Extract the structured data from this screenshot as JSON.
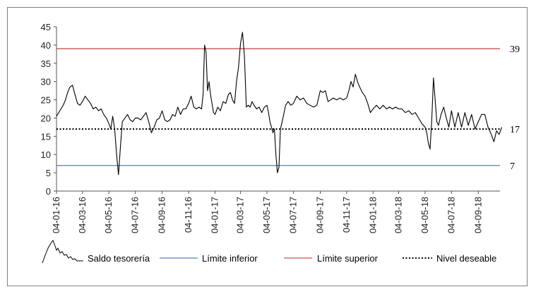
{
  "chart_data": {
    "type": "line",
    "title": "",
    "xlabel": "",
    "ylabel": "",
    "ylim": [
      0,
      45
    ],
    "yticks": [
      0,
      5,
      10,
      15,
      20,
      25,
      30,
      35,
      40,
      45
    ],
    "x_ticks": [
      "04-01-16",
      "04-03-16",
      "04-05-16",
      "04-07-16",
      "04-09-16",
      "04-11-16",
      "04-01-17",
      "04-03-17",
      "04-05-17",
      "04-07-17",
      "04-09-17",
      "04-11-17",
      "04-01-18",
      "04-03-18",
      "04-05-18",
      "04-07-18",
      "04-09-18"
    ],
    "series": [
      {
        "name": "Saldo tesorería",
        "color": "#000000",
        "style": "solid",
        "points": [
          [
            "04-01-16",
            20.5
          ],
          [
            "04-01-16",
            21.5
          ],
          [
            "04-01-16",
            22.5
          ],
          [
            "04-01-16",
            23.5
          ],
          [
            "04-01-16",
            25.0
          ],
          [
            "04-01-16",
            27.0
          ],
          [
            "04-02-16",
            28.5
          ],
          [
            "04-02-16",
            29.0
          ],
          [
            "04-02-16",
            26.5
          ],
          [
            "04-02-16",
            24.0
          ],
          [
            "04-02-16",
            23.5
          ],
          [
            "04-03-16",
            24.5
          ],
          [
            "04-03-16",
            26.0
          ],
          [
            "04-03-16",
            25.0
          ],
          [
            "04-03-16",
            24.0
          ],
          [
            "04-03-16",
            22.5
          ],
          [
            "04-04-16",
            23.0
          ],
          [
            "04-04-16",
            22.0
          ],
          [
            "04-04-16",
            22.5
          ],
          [
            "04-04-16",
            21.0
          ],
          [
            "04-04-16",
            20.0
          ],
          [
            "04-05-16",
            18.5
          ],
          [
            "04-05-16",
            17.0
          ],
          [
            "04-05-16",
            20.5
          ],
          [
            "04-05-16",
            17.0
          ],
          [
            "04-05-16",
            10.0
          ],
          [
            "04-05-16",
            4.5
          ],
          [
            "04-05-16",
            12.0
          ],
          [
            "04-06-16",
            19.0
          ],
          [
            "04-06-16",
            20.0
          ],
          [
            "04-06-16",
            21.0
          ],
          [
            "04-06-16",
            19.5
          ],
          [
            "04-06-16",
            19.0
          ],
          [
            "04-07-16",
            20.0
          ],
          [
            "04-07-16",
            20.0
          ],
          [
            "04-07-16",
            19.5
          ],
          [
            "04-07-16",
            20.5
          ],
          [
            "04-07-16",
            21.5
          ],
          [
            "04-08-16",
            19.0
          ],
          [
            "04-08-16",
            16.0
          ],
          [
            "04-08-16",
            17.5
          ],
          [
            "04-08-16",
            19.5
          ],
          [
            "04-08-16",
            20.0
          ],
          [
            "04-09-16",
            22.0
          ],
          [
            "04-09-16",
            19.5
          ],
          [
            "04-09-16",
            19.0
          ],
          [
            "04-09-16",
            19.5
          ],
          [
            "04-09-16",
            21.0
          ],
          [
            "04-10-16",
            20.5
          ],
          [
            "04-10-16",
            23.0
          ],
          [
            "04-10-16",
            21.0
          ],
          [
            "04-10-16",
            22.5
          ],
          [
            "04-10-16",
            22.5
          ],
          [
            "04-11-16",
            24.0
          ],
          [
            "04-11-16",
            26.0
          ],
          [
            "04-11-16",
            23.0
          ],
          [
            "04-11-16",
            22.5
          ],
          [
            "04-11-16",
            23.0
          ],
          [
            "04-12-16",
            22.5
          ],
          [
            "04-12-16",
            26.5
          ],
          [
            "04-12-16",
            40.0
          ],
          [
            "04-12-16",
            38.0
          ],
          [
            "04-12-16",
            27.5
          ],
          [
            "04-12-16",
            30.0
          ],
          [
            "04-12-16",
            26.5
          ],
          [
            "04-12-16",
            24.0
          ],
          [
            "04-12-16",
            21.5
          ],
          [
            "04-01-17",
            21.0
          ],
          [
            "04-01-17",
            23.0
          ],
          [
            "04-01-17",
            22.0
          ],
          [
            "04-01-17",
            24.5
          ],
          [
            "04-01-17",
            24.0
          ],
          [
            "04-02-17",
            26.5
          ],
          [
            "04-02-17",
            27.0
          ],
          [
            "04-02-17",
            25.0
          ],
          [
            "04-02-17",
            24.0
          ],
          [
            "04-02-17",
            30.0
          ],
          [
            "04-02-17",
            34.0
          ],
          [
            "04-03-17",
            40.5
          ],
          [
            "04-03-17",
            43.5
          ],
          [
            "04-03-17",
            37.0
          ],
          [
            "04-03-17",
            23.0
          ],
          [
            "04-03-17",
            23.5
          ],
          [
            "04-03-17",
            23.0
          ],
          [
            "04-03-17",
            24.5
          ],
          [
            "04-04-17",
            23.5
          ],
          [
            "04-04-17",
            22.5
          ],
          [
            "04-04-17",
            23.0
          ],
          [
            "04-04-17",
            21.5
          ],
          [
            "04-04-17",
            23.0
          ],
          [
            "04-05-17",
            23.5
          ],
          [
            "04-05-17",
            21.5
          ],
          [
            "04-05-17",
            19.0
          ],
          [
            "04-05-17",
            17.5
          ],
          [
            "04-05-17",
            16.0
          ],
          [
            "04-05-17",
            17.0
          ],
          [
            "04-05-17",
            10.0
          ],
          [
            "04-05-17",
            5.0
          ],
          [
            "04-05-17",
            6.5
          ],
          [
            "04-06-17",
            17.0
          ],
          [
            "04-06-17",
            20.0
          ],
          [
            "04-06-17",
            23.5
          ],
          [
            "04-06-17",
            24.5
          ],
          [
            "04-06-17",
            23.5
          ],
          [
            "04-07-17",
            24.0
          ],
          [
            "04-07-17",
            26.0
          ],
          [
            "04-07-17",
            25.0
          ],
          [
            "04-07-17",
            25.5
          ],
          [
            "04-08-17",
            24.0
          ],
          [
            "04-08-17",
            23.5
          ],
          [
            "04-08-17",
            23.0
          ],
          [
            "04-08-17",
            23.5
          ],
          [
            "04-09-17",
            27.5
          ],
          [
            "04-09-17",
            27.0
          ],
          [
            "04-09-17",
            27.5
          ],
          [
            "04-09-17",
            24.5
          ],
          [
            "04-09-17",
            25.0
          ],
          [
            "04-10-17",
            25.5
          ],
          [
            "04-10-17",
            25.0
          ],
          [
            "04-10-17",
            25.5
          ],
          [
            "04-10-17",
            25.0
          ],
          [
            "04-11-17",
            25.5
          ],
          [
            "04-11-17",
            27.5
          ],
          [
            "04-11-17",
            30.0
          ],
          [
            "04-11-17",
            28.5
          ],
          [
            "04-11-17",
            32.0
          ],
          [
            "04-11-17",
            30.0
          ],
          [
            "04-12-17",
            28.5
          ],
          [
            "04-12-17",
            27.0
          ],
          [
            "04-12-17",
            26.0
          ],
          [
            "04-12-17",
            24.0
          ],
          [
            "04-12-17",
            21.5
          ],
          [
            "04-01-18",
            22.5
          ],
          [
            "04-01-18",
            23.5
          ],
          [
            "04-01-18",
            22.5
          ],
          [
            "04-01-18",
            23.5
          ],
          [
            "04-02-18",
            22.5
          ],
          [
            "04-02-18",
            23.0
          ],
          [
            "04-02-18",
            22.5
          ],
          [
            "04-02-18",
            23.0
          ],
          [
            "04-03-18",
            22.5
          ],
          [
            "04-03-18",
            22.5
          ],
          [
            "04-03-18",
            21.5
          ],
          [
            "04-03-18",
            22.0
          ],
          [
            "04-04-18",
            21.0
          ],
          [
            "04-04-18",
            21.5
          ],
          [
            "04-04-18",
            20.0
          ],
          [
            "04-04-18",
            18.5
          ],
          [
            "04-05-18",
            17.5
          ],
          [
            "04-05-18",
            16.0
          ],
          [
            "04-05-18",
            13.0
          ],
          [
            "04-05-18",
            11.5
          ],
          [
            "04-05-18",
            19.5
          ],
          [
            "04-05-18",
            31.0
          ],
          [
            "04-05-18",
            25.0
          ],
          [
            "04-05-18",
            19.0
          ],
          [
            "04-06-18",
            18.0
          ],
          [
            "04-06-18",
            21.0
          ],
          [
            "04-06-18",
            23.0
          ],
          [
            "04-06-18",
            20.0
          ],
          [
            "04-06-18",
            17.5
          ],
          [
            "04-07-18",
            22.0
          ],
          [
            "04-07-18",
            17.5
          ],
          [
            "04-07-18",
            21.5
          ],
          [
            "04-07-18",
            17.5
          ],
          [
            "04-08-18",
            21.5
          ],
          [
            "04-08-18",
            18.0
          ],
          [
            "04-08-18",
            21.0
          ],
          [
            "04-08-18",
            17.0
          ],
          [
            "04-09-18",
            19.0
          ],
          [
            "04-09-18",
            21.0
          ],
          [
            "04-09-18",
            21.0
          ],
          [
            "04-09-18",
            17.5
          ],
          [
            "04-10-18",
            15.5
          ],
          [
            "04-10-18",
            13.5
          ],
          [
            "04-10-18",
            16.5
          ],
          [
            "04-10-18",
            15.5
          ],
          [
            "04-10-18",
            17.5
          ]
        ]
      },
      {
        "name": "Límite inferior",
        "color": "#2e5fa8",
        "style": "solid",
        "value": 7
      },
      {
        "name": "Límite superior",
        "color": "#c0282d",
        "style": "solid",
        "value": 39
      },
      {
        "name": "Nivel deseable",
        "color": "#000000",
        "style": "dotted",
        "value": 17
      }
    ],
    "reference_labels": [
      {
        "label": "39",
        "value": 39
      },
      {
        "label": "17",
        "value": 17
      },
      {
        "label": "7",
        "value": 7
      }
    ],
    "legend": {
      "position": "bottom"
    }
  }
}
